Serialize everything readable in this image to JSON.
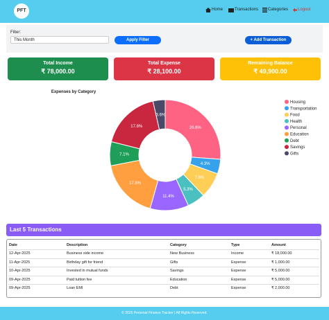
{
  "nav": {
    "logo": "PFT",
    "links": [
      "Home",
      "Transactions",
      "Categories",
      "Logout"
    ]
  },
  "filter": {
    "label": "Filter:",
    "selected": "This Month",
    "apply": "Apply Filter",
    "add": "+ Add Transaction"
  },
  "cards": [
    {
      "title": "Total Income",
      "amount": "₹ 78,000.00"
    },
    {
      "title": "Total Expense",
      "amount": "₹ 28,100.00"
    },
    {
      "title": "Remaining Balance",
      "amount": "₹ 49,900.00"
    }
  ],
  "chart_data": {
    "type": "doughnut",
    "title": "Expenses by Category",
    "categories": [
      "Housing",
      "Transportation",
      "Food",
      "Health",
      "Personal",
      "Education",
      "Debt",
      "Savings",
      "Gifts"
    ],
    "values": [
      26.6,
      4.3,
      7.6,
      5.3,
      11.4,
      17.8,
      7.1,
      17.8,
      3.6
    ],
    "value_labels": [
      "26.6%",
      "4.3%",
      "7.6%",
      "5.3%",
      "11.4%",
      "17.8%",
      "7.1%",
      "17.8%",
      "3.6%"
    ],
    "colors": [
      "#ff6384",
      "#36a2eb",
      "#ffce56",
      "#4bc0c0",
      "#9966ff",
      "#ff9f40",
      "#1e9e57",
      "#c9273f",
      "#4a4a68"
    ],
    "legend": "right"
  },
  "transactions": {
    "title": "Last 5 Transactions",
    "columns": [
      "Date",
      "Description",
      "Category",
      "Type",
      "Amount"
    ],
    "rows": [
      [
        "12-Apr-2025",
        "Business side income",
        "New Business",
        "Income",
        "₹ 18,000.00"
      ],
      [
        "11-Apr-2025",
        "Birthday gift for friend",
        "Gifts",
        "Expense",
        "₹ 1,000.00"
      ],
      [
        "10-Apr-2025",
        "Invested in mutual funds",
        "Savings",
        "Expense",
        "₹ 5,000.00"
      ],
      [
        "09-Apr-2025",
        "Paid tuition fee",
        "Education",
        "Expense",
        "₹ 5,000.00"
      ],
      [
        "09-Apr-2025",
        "Loan EMI",
        "Debt",
        "Expense",
        "₹ 2,000.00"
      ]
    ]
  },
  "footer": "© 2025 Personal Finance Tracker | All Rights Reserved."
}
